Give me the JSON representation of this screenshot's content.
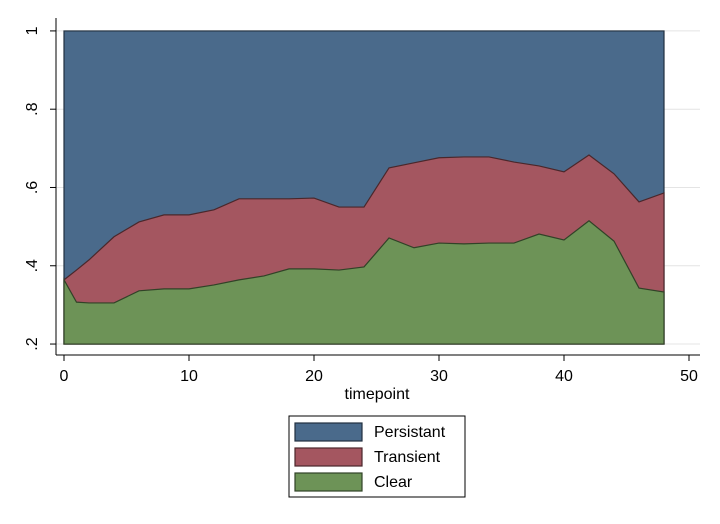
{
  "chart_data": {
    "type": "area",
    "x_label": "timepoint",
    "x": [
      0,
      1,
      2,
      4,
      6,
      8,
      10,
      12,
      14,
      16,
      18,
      20,
      22,
      24,
      26,
      28,
      30,
      32,
      34,
      36,
      38,
      40,
      42,
      44,
      46,
      48
    ],
    "series": [
      {
        "name": "Persistant",
        "color": "#4a6a8b",
        "values": [
          1,
          1,
          1,
          1,
          1,
          1,
          1,
          1,
          1,
          1,
          1,
          1,
          1,
          1,
          1,
          1,
          1,
          1,
          1,
          1,
          1,
          1,
          1,
          1,
          1,
          1
        ]
      },
      {
        "name": "Transient",
        "color": "#a45660",
        "values": [
          0.364,
          0.389,
          0.415,
          0.474,
          0.512,
          0.53,
          0.53,
          0.543,
          0.571,
          0.571,
          0.571,
          0.573,
          0.55,
          0.55,
          0.65,
          0.663,
          0.676,
          0.678,
          0.678,
          0.665,
          0.655,
          0.64,
          0.683,
          0.635,
          0.563,
          0.586
        ]
      },
      {
        "name": "Clear",
        "color": "#6d9357",
        "values": [
          0.364,
          0.307,
          0.305,
          0.305,
          0.336,
          0.341,
          0.341,
          0.351,
          0.364,
          0.374,
          0.392,
          0.392,
          0.389,
          0.397,
          0.471,
          0.446,
          0.458,
          0.456,
          0.458,
          0.458,
          0.481,
          0.466,
          0.515,
          0.463,
          0.343,
          0.333
        ]
      }
    ],
    "xlim": [
      -0.64,
      50.88
    ],
    "ylim": [
      0.172,
      1.033
    ],
    "xticks": [
      0,
      10,
      20,
      30,
      40,
      50
    ],
    "yticks": [
      {
        "value": 0.2,
        "label": ".2"
      },
      {
        "value": 0.4,
        "label": ".4"
      },
      {
        "value": 0.6,
        "label": ".6"
      },
      {
        "value": 0.8,
        "label": ".8"
      },
      {
        "value": 1,
        "label": "1"
      }
    ],
    "grid": true,
    "legend": "bottom"
  }
}
